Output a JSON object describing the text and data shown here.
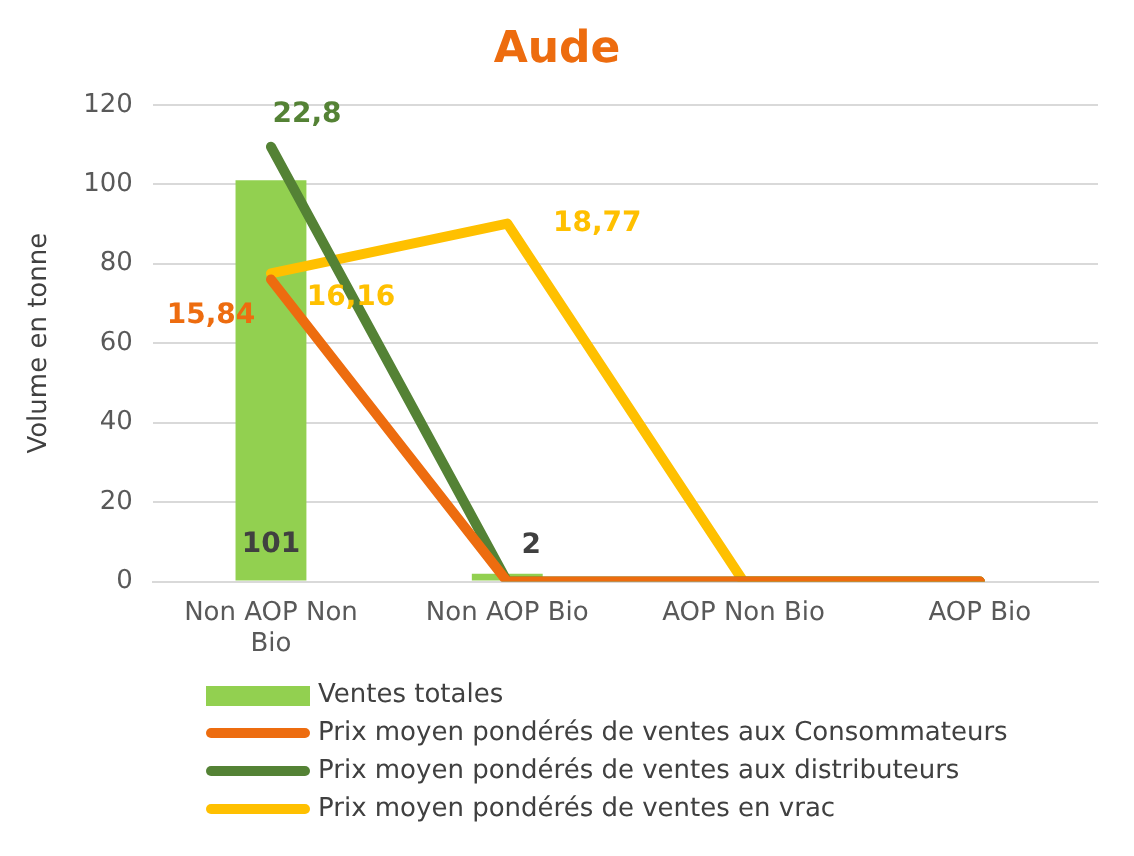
{
  "chart_data": {
    "type": "bar",
    "title": "Aude",
    "ylabel": "Volume en tonne",
    "categories": [
      "Non AOP Non Bio",
      "Non AOP Bio",
      "AOP Non Bio",
      "AOP Bio"
    ],
    "series": [
      {
        "name": "Ventes totales",
        "color": "#92d050",
        "values": [
          101,
          2,
          0,
          0
        ],
        "value_labels": [
          "101",
          "2",
          null,
          null
        ]
      },
      {
        "name": "Prix moyen pondérés de ventes aux Consommateurs",
        "type": "line",
        "axis": "y2",
        "color": "#ed6c0f",
        "values": [
          15.84,
          0,
          0,
          0
        ],
        "value_labels": [
          "15,84",
          null,
          null,
          null
        ]
      },
      {
        "name": "Prix moyen pondérés de ventes aux distributeurs",
        "type": "line",
        "axis": "y2",
        "color": "#548235",
        "values": [
          22.8,
          0,
          0,
          0
        ],
        "value_labels": [
          "22,8",
          null,
          null,
          null
        ]
      },
      {
        "name": "Prix moyen pondérés de ventes en vrac",
        "type": "line",
        "axis": "y2",
        "color": "#ffc000",
        "values": [
          16.16,
          18.77,
          0,
          0
        ],
        "value_labels": [
          "16,16",
          "18,77",
          null,
          null
        ]
      }
    ],
    "ylim": [
      0,
      120
    ],
    "yticks": [
      0,
      20,
      40,
      60,
      80,
      100,
      120
    ],
    "y2lim": [
      0,
      25
    ],
    "grid": "y",
    "legend": "bottom",
    "marker": "none",
    "line_style": "solid"
  }
}
